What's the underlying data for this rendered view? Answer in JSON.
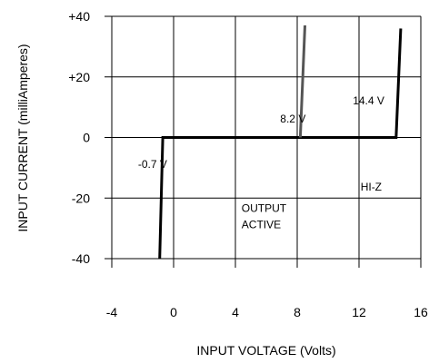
{
  "chart_data": {
    "type": "line",
    "xlabel": "INPUT VOLTAGE  (Volts)",
    "ylabel": "INPUT CURRENT  (milliAmperes)",
    "xlim": [
      -4,
      16
    ],
    "ylim": [
      -40,
      40
    ],
    "x_ticks": [
      -4,
      0,
      4,
      8,
      12,
      16
    ],
    "x_tick_labels": [
      "-4",
      "0",
      "4",
      "8",
      "12",
      "16"
    ],
    "y_ticks": [
      40,
      20,
      0,
      -20,
      -40
    ],
    "y_tick_labels": [
      "+40",
      "+20",
      "0",
      "-20",
      "-40"
    ],
    "grid": true,
    "series": [
      {
        "color": "#000000",
        "points": [
          [
            -0.9,
            -40
          ],
          [
            -0.7,
            0
          ],
          [
            14.4,
            0
          ],
          [
            14.7,
            36
          ]
        ]
      },
      {
        "color": "#555555",
        "points": [
          [
            8.2,
            0
          ],
          [
            8.5,
            37
          ]
        ]
      }
    ],
    "annotations": [
      {
        "text": "-0.7 V",
        "x": -2.3,
        "y": -10
      },
      {
        "text": "8.2 V",
        "x": 6.9,
        "y": 5
      },
      {
        "text": "14.4 V",
        "x": 11.6,
        "y": 11
      },
      {
        "text": "HI-Z",
        "x": 12.1,
        "y": -17.5
      },
      {
        "text": "OUTPUT",
        "x": 4.4,
        "y": -24.5
      },
      {
        "text": "ACTIVE",
        "x": 4.4,
        "y": -30
      }
    ]
  }
}
